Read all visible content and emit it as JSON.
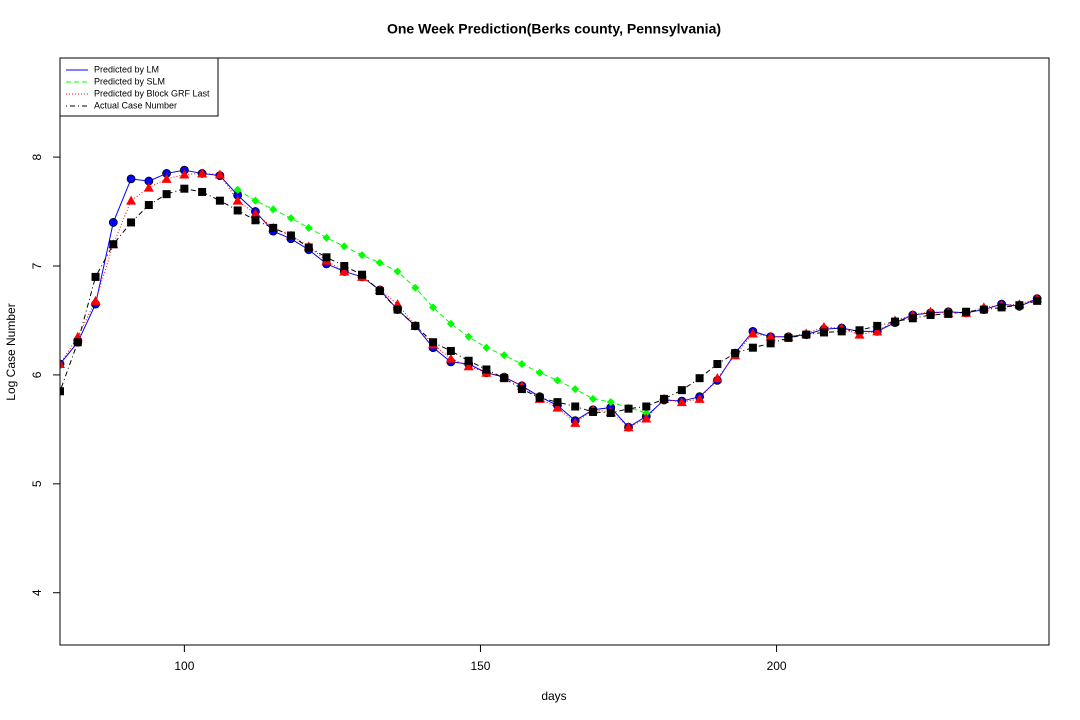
{
  "chart_data": {
    "type": "line",
    "title": "One Week Prediction(Berks county, Pennsylvania)",
    "x_label": "days",
    "y_label": "Log Case Number",
    "xlim": [
      79,
      246
    ],
    "ylim": [
      3.52,
      8.91
    ],
    "xticks": [
      100,
      150,
      200
    ],
    "yticks": [
      4,
      5,
      6,
      7,
      8
    ],
    "legend": "top-left",
    "x": [
      79,
      82,
      85,
      88,
      91,
      94,
      97,
      100,
      103,
      106,
      109,
      112,
      115,
      118,
      121,
      124,
      127,
      130,
      133,
      136,
      139,
      142,
      145,
      148,
      151,
      154,
      157,
      160,
      163,
      166,
      169,
      172,
      175,
      178,
      181,
      184,
      187,
      190,
      193,
      196,
      199,
      202,
      205,
      208,
      211,
      214,
      217,
      220,
      223,
      226,
      229,
      232,
      235,
      238,
      241,
      244
    ],
    "series": [
      {
        "name": "Predicted by LM",
        "color": "#0000ff",
        "dash": "solid",
        "marker": "circle",
        "values": [
          6.1,
          6.3,
          6.65,
          7.4,
          7.8,
          7.78,
          7.85,
          7.88,
          7.85,
          7.83,
          7.65,
          7.5,
          7.32,
          7.25,
          7.15,
          7.02,
          6.95,
          6.9,
          6.78,
          6.6,
          6.45,
          6.25,
          6.12,
          6.1,
          6.02,
          5.98,
          5.9,
          5.8,
          5.72,
          5.58,
          5.68,
          5.7,
          5.52,
          5.62,
          5.77,
          5.76,
          5.8,
          5.95,
          6.2,
          6.4,
          6.35,
          6.35,
          6.37,
          6.42,
          6.43,
          6.4,
          6.4,
          6.48,
          6.55,
          6.57,
          6.58,
          6.57,
          6.6,
          6.65,
          6.63,
          6.7
        ]
      },
      {
        "name": "Predicted by SLM",
        "color": "#00ff00",
        "dash": "dashed",
        "marker": "diamond",
        "values": [
          null,
          null,
          null,
          null,
          null,
          null,
          null,
          null,
          null,
          null,
          7.7,
          7.6,
          7.52,
          7.44,
          7.35,
          7.26,
          7.18,
          7.1,
          7.03,
          6.95,
          6.8,
          6.62,
          6.47,
          6.35,
          6.25,
          6.18,
          6.1,
          6.02,
          5.95,
          5.87,
          5.78,
          5.75,
          5.7,
          5.65,
          null,
          null,
          null,
          null,
          null,
          null,
          null,
          null,
          null,
          null,
          null,
          null,
          null,
          null,
          null,
          null,
          null,
          null,
          null,
          null,
          null,
          null
        ]
      },
      {
        "name": "Predicted by Block GRF Last",
        "color": "#ff0000",
        "dash": "dotted",
        "marker": "triangle",
        "values": [
          6.1,
          6.35,
          6.68,
          7.2,
          7.6,
          7.72,
          7.8,
          7.84,
          7.85,
          7.84,
          7.6,
          7.48,
          7.35,
          7.28,
          7.18,
          7.05,
          6.95,
          6.9,
          6.78,
          6.65,
          6.45,
          6.28,
          6.15,
          6.08,
          6.02,
          5.98,
          5.9,
          5.78,
          5.7,
          5.56,
          5.68,
          5.66,
          5.52,
          5.6,
          5.78,
          5.75,
          5.78,
          5.97,
          6.18,
          6.38,
          6.35,
          6.35,
          6.38,
          6.44,
          6.43,
          6.37,
          6.4,
          6.5,
          6.55,
          6.58,
          6.57,
          6.57,
          6.62,
          6.64,
          6.65,
          6.7
        ]
      },
      {
        "name": "Actual Case Number",
        "color": "#000000",
        "dash": "dotdash",
        "marker": "square",
        "values": [
          5.85,
          6.3,
          6.9,
          7.2,
          7.4,
          7.56,
          7.66,
          7.71,
          7.68,
          7.6,
          7.51,
          7.42,
          7.35,
          7.28,
          7.17,
          7.08,
          7.0,
          6.92,
          6.77,
          6.6,
          6.45,
          6.3,
          6.22,
          6.13,
          6.05,
          5.97,
          5.87,
          5.79,
          5.75,
          5.71,
          5.66,
          5.65,
          5.69,
          5.71,
          5.78,
          5.86,
          5.97,
          6.1,
          6.2,
          6.25,
          6.29,
          6.34,
          6.37,
          6.39,
          6.4,
          6.41,
          6.45,
          6.49,
          6.52,
          6.55,
          6.56,
          6.58,
          6.6,
          6.62,
          6.64,
          6.68
        ]
      }
    ]
  }
}
